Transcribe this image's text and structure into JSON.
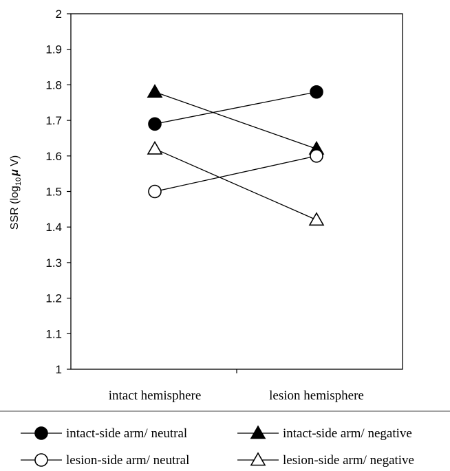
{
  "chart_data": {
    "type": "line",
    "ylabel": "SSR (log₁₀ μ V)",
    "ylabel_parts": {
      "main": "SSR (log",
      "sub": "10",
      "greek": "μ",
      "tail": " V)"
    },
    "ylim": [
      1,
      2
    ],
    "yticks": [
      "1",
      "1.1",
      "1.2",
      "1.3",
      "1.4",
      "1.5",
      "1.6",
      "1.7",
      "1.8",
      "1.9",
      "2"
    ],
    "categories": [
      "intact hemisphere",
      "lesion hemisphere"
    ],
    "grid": false,
    "legend_position": "bottom",
    "series": [
      {
        "name": "intact-side arm/  neutral",
        "marker": "circle-filled",
        "values": [
          1.69,
          1.78
        ]
      },
      {
        "name": "intact-side arm/ negative",
        "marker": "triangle-filled",
        "values": [
          1.78,
          1.62
        ]
      },
      {
        "name": "lesion-side arm/  neutral",
        "marker": "circle-open",
        "values": [
          1.5,
          1.6
        ]
      },
      {
        "name": "lesion-side arm/ negative",
        "marker": "triangle-open",
        "values": [
          1.62,
          1.42
        ]
      }
    ]
  }
}
